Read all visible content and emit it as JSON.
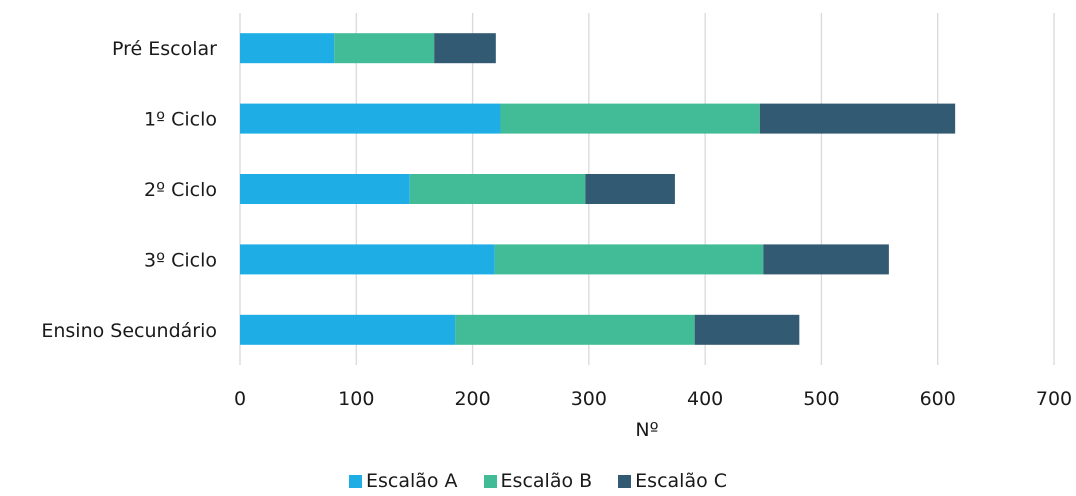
{
  "colors": {
    "background": "#ffffff",
    "grid": "#d9d9d9",
    "text": "#1a1a1a"
  },
  "chart_data": {
    "type": "bar",
    "orientation": "horizontal",
    "stacked": true,
    "categories": [
      "Pré Escolar",
      "1º Ciclo",
      "2º Ciclo",
      "3º Ciclo",
      "Ensino Secundário"
    ],
    "series": [
      {
        "name": "Escalão A",
        "color": "#1eaee5",
        "values": [
          81,
          224,
          146,
          219,
          185
        ]
      },
      {
        "name": "Escalão B",
        "color": "#42bb97",
        "values": [
          86,
          223,
          151,
          231,
          206
        ]
      },
      {
        "name": "Escalão C",
        "color": "#335a73",
        "values": [
          53,
          168,
          77,
          108,
          90
        ]
      }
    ],
    "xlabel": "Nº",
    "ylabel": "",
    "xlim": [
      0,
      700
    ],
    "xticks": [
      0,
      100,
      200,
      300,
      400,
      500,
      600,
      700
    ],
    "grid": "vertical",
    "legend_position": "bottom"
  }
}
